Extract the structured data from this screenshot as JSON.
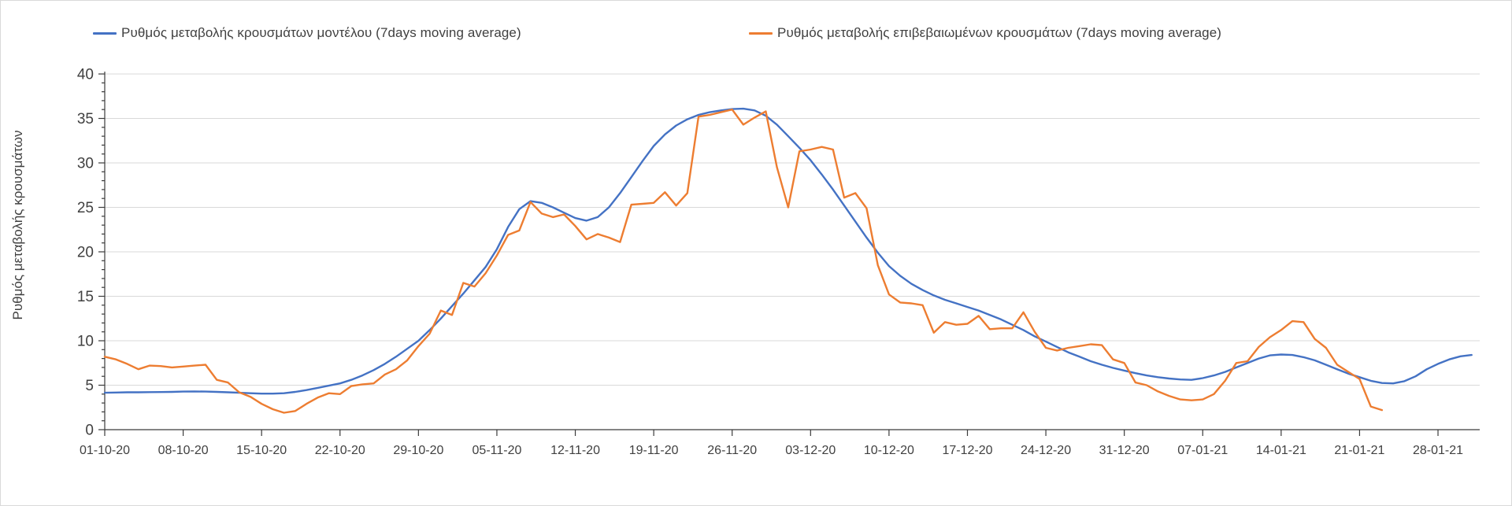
{
  "chart_data": {
    "type": "line",
    "title": "",
    "xlabel": "",
    "ylabel": "Ρυθμός μεταβολής κρουσμάτων",
    "ylim": [
      0,
      40
    ],
    "y_ticks": [
      0,
      5,
      10,
      15,
      20,
      25,
      30,
      35,
      40
    ],
    "y_minor_tick_step": 1,
    "grid": "horizontal",
    "legend_position": "top",
    "x_tick_labels": [
      "01-10-20",
      "08-10-20",
      "15-10-20",
      "22-10-20",
      "29-10-20",
      "05-11-20",
      "12-11-20",
      "19-11-20",
      "26-11-20",
      "03-12-20",
      "10-12-20",
      "17-12-20",
      "24-12-20",
      "31-12-20",
      "07-01-21",
      "14-01-21",
      "21-01-21",
      "28-01-21"
    ],
    "x_tick_interval_days": 7,
    "x_start_date": "01-10-20",
    "series": [
      {
        "name": "Ρυθμός μεταβολής κρουσμάτων μοντέλου (7days moving average)",
        "color": "#4472C4",
        "start_day": 0,
        "values": [
          4.15,
          4.18,
          4.2,
          4.2,
          4.22,
          4.23,
          4.25,
          4.28,
          4.3,
          4.28,
          4.25,
          4.2,
          4.15,
          4.1,
          4.05,
          4.05,
          4.1,
          4.25,
          4.45,
          4.7,
          4.95,
          5.2,
          5.6,
          6.1,
          6.7,
          7.4,
          8.2,
          9.1,
          10.0,
          11.2,
          12.5,
          13.9,
          15.3,
          16.8,
          18.3,
          20.3,
          22.8,
          24.8,
          25.7,
          25.5,
          25.0,
          24.4,
          23.8,
          23.5,
          23.9,
          25.0,
          26.6,
          28.4,
          30.2,
          31.9,
          33.2,
          34.2,
          34.9,
          35.4,
          35.7,
          35.9,
          36.05,
          36.1,
          35.9,
          35.3,
          34.3,
          33.0,
          31.7,
          30.3,
          28.7,
          27.0,
          25.2,
          23.4,
          21.6,
          19.9,
          18.4,
          17.3,
          16.4,
          15.7,
          15.1,
          14.6,
          14.2,
          13.8,
          13.4,
          12.9,
          12.4,
          11.8,
          11.2,
          10.5,
          9.9,
          9.3,
          8.7,
          8.2,
          7.7,
          7.3,
          6.95,
          6.65,
          6.35,
          6.1,
          5.9,
          5.75,
          5.65,
          5.6,
          5.8,
          6.1,
          6.5,
          7.0,
          7.5,
          8.0,
          8.35,
          8.45,
          8.4,
          8.15,
          7.8,
          7.3,
          6.8,
          6.3,
          5.9,
          5.5,
          5.25,
          5.2,
          5.45,
          6.0,
          6.8,
          7.4,
          7.9,
          8.25,
          8.4
        ]
      },
      {
        "name": "Ρυθμός μεταβολής επιβεβαιωμένων κρουσμάτων (7days moving average)",
        "color": "#ED7D31",
        "start_day": 0,
        "values": [
          8.2,
          7.9,
          7.4,
          6.8,
          7.2,
          7.15,
          7.0,
          7.1,
          7.2,
          7.3,
          5.6,
          5.3,
          4.2,
          3.7,
          2.9,
          2.3,
          1.9,
          2.1,
          2.9,
          3.6,
          4.1,
          4.0,
          4.9,
          5.1,
          5.2,
          6.2,
          6.8,
          7.8,
          9.4,
          10.8,
          13.4,
          12.9,
          16.5,
          16.1,
          17.6,
          19.6,
          21.9,
          22.4,
          25.6,
          24.3,
          23.9,
          24.2,
          22.9,
          21.4,
          22.0,
          21.6,
          21.1,
          25.3,
          25.4,
          25.5,
          26.7,
          25.2,
          26.6,
          35.2,
          35.4,
          35.7,
          36.0,
          34.3,
          35.1,
          35.8,
          29.5,
          25.0,
          31.3,
          31.5,
          31.8,
          31.5,
          26.1,
          26.6,
          24.9,
          18.5,
          15.2,
          14.3,
          14.2,
          14.0,
          10.9,
          12.1,
          11.8,
          11.9,
          12.8,
          11.3,
          11.4,
          11.4,
          13.2,
          11.0,
          9.2,
          8.9,
          9.2,
          9.4,
          9.6,
          9.5,
          7.9,
          7.5,
          5.3,
          5.0,
          4.3,
          3.8,
          3.4,
          3.3,
          3.4,
          4.0,
          5.5,
          7.5,
          7.7,
          9.3,
          10.4,
          11.2,
          12.2,
          12.1,
          10.2,
          9.2,
          7.3,
          6.5,
          5.7,
          2.6,
          2.2
        ]
      }
    ],
    "colors": {
      "grid": "#D9D9D9",
      "axis": "#3b3b3b",
      "tick_text": "#404040",
      "border": "#D9D9D9"
    }
  }
}
